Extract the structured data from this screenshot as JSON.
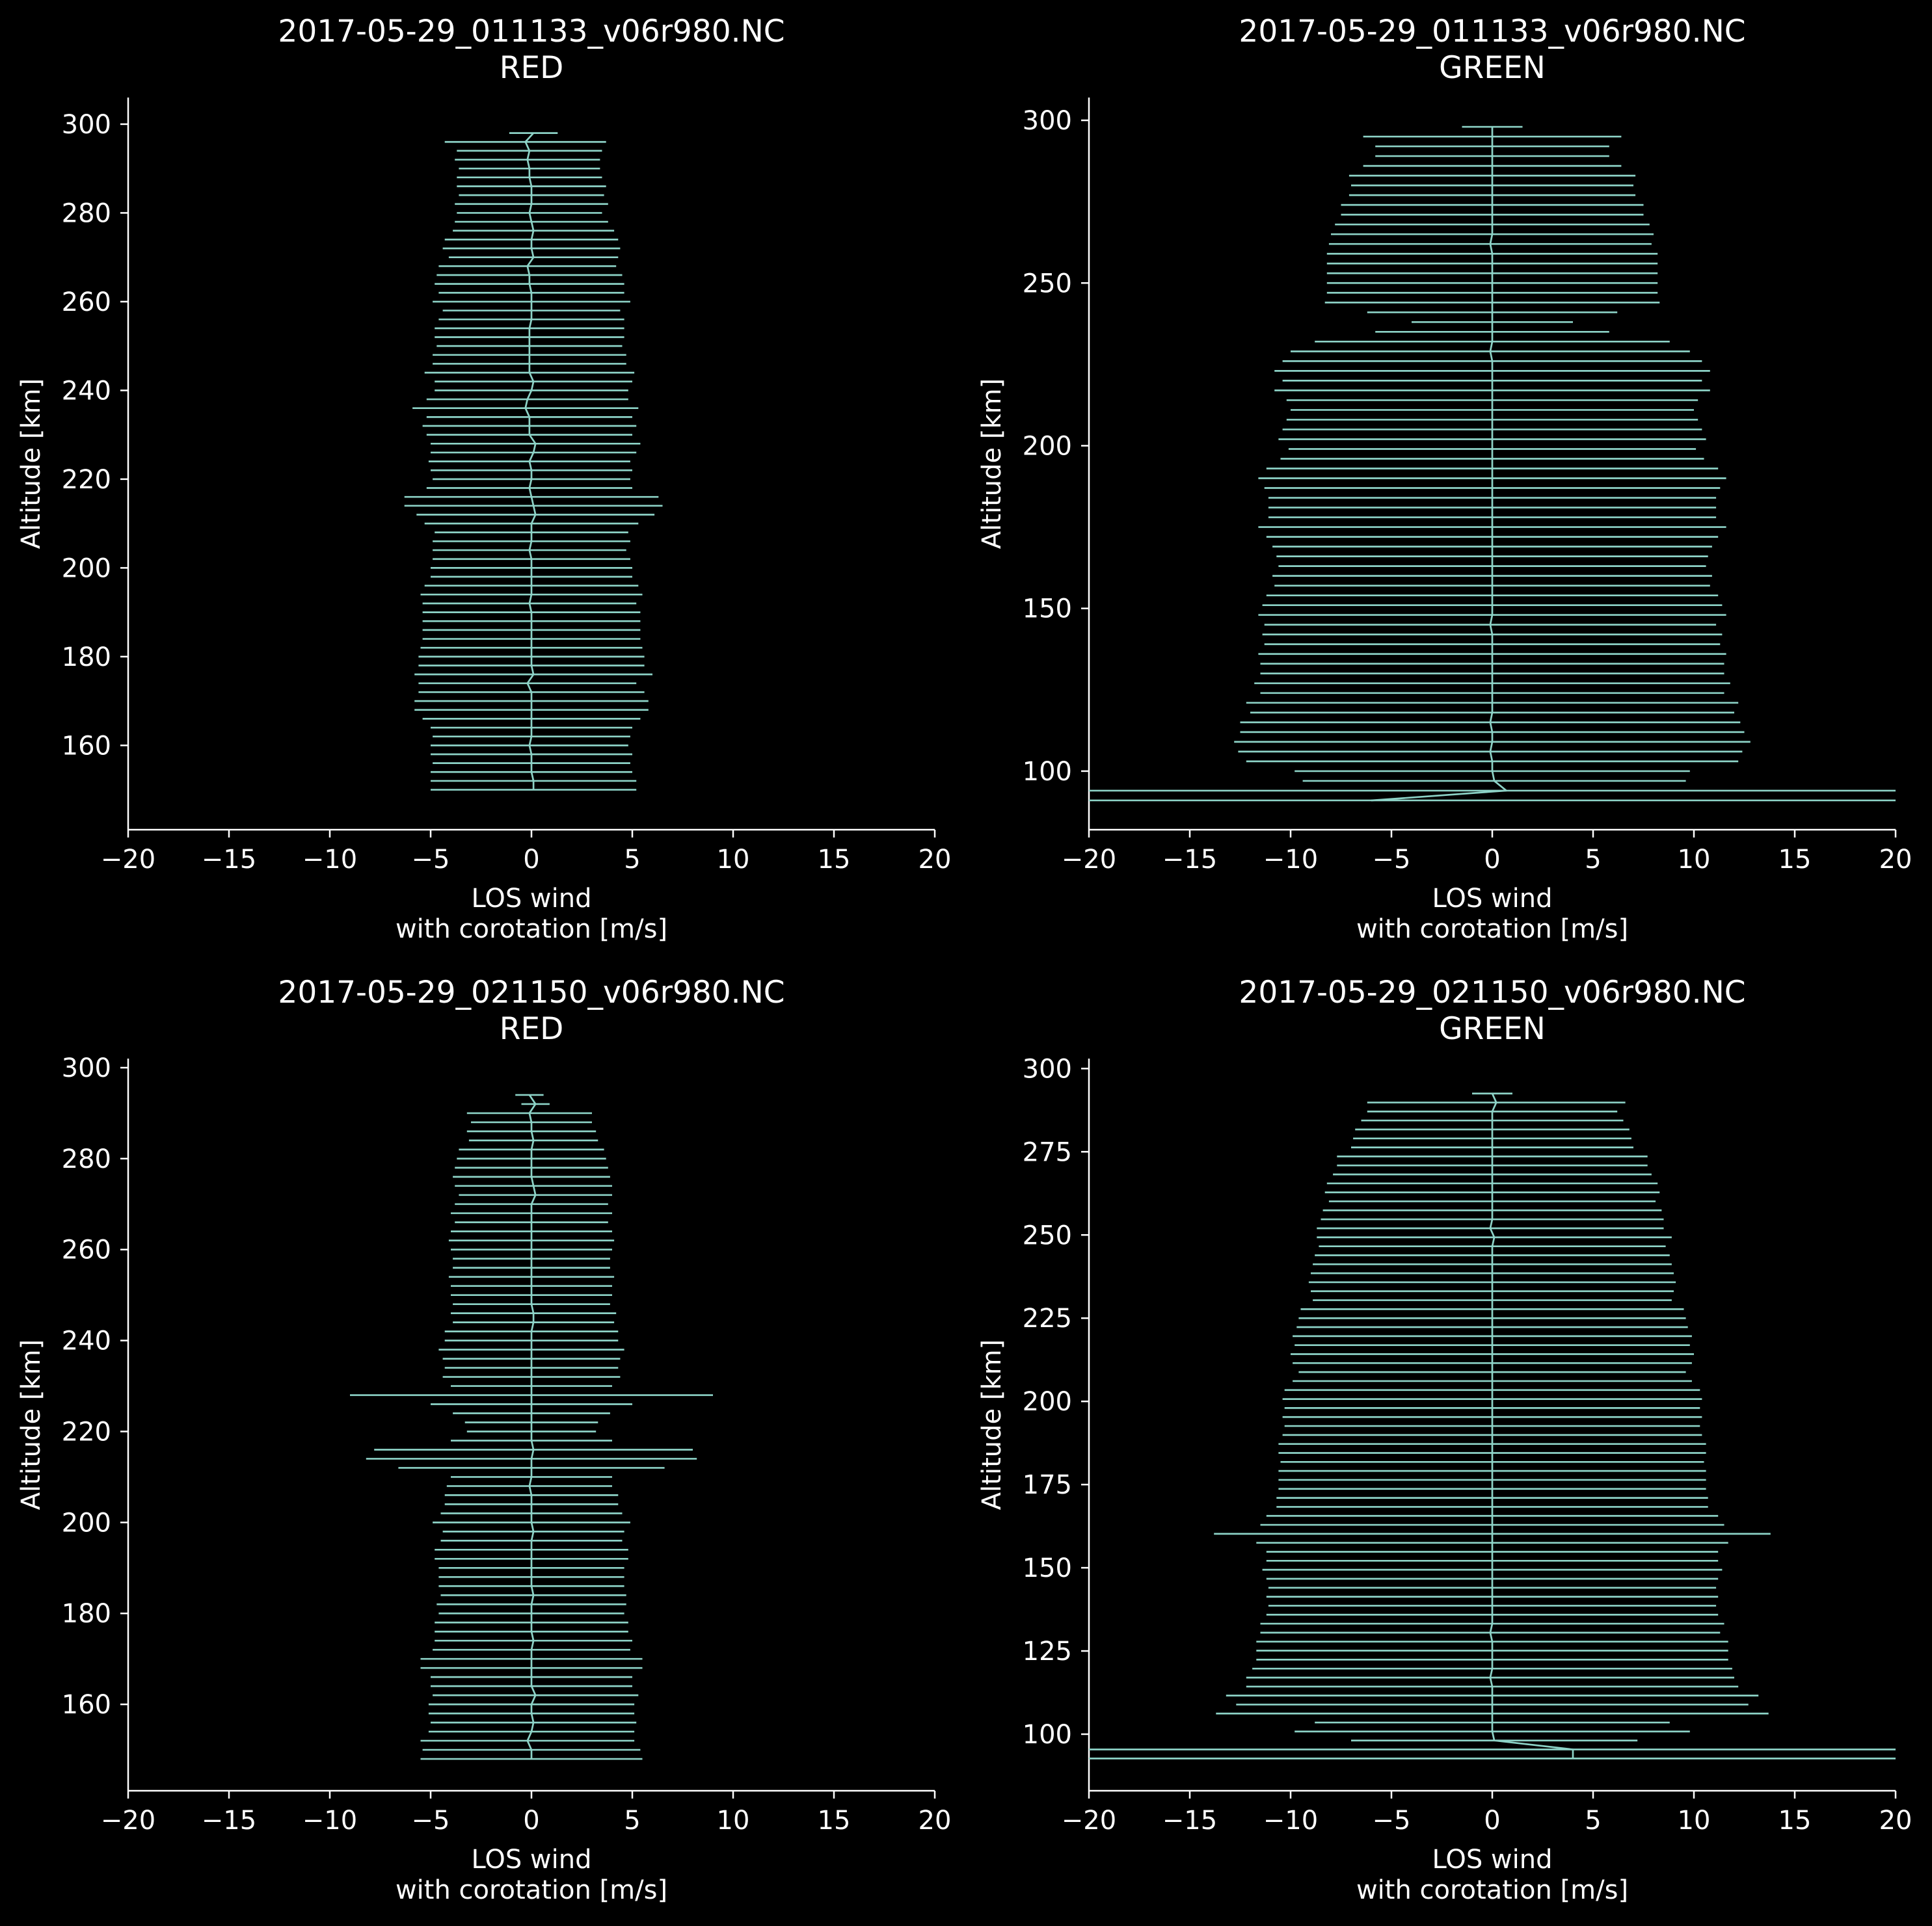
{
  "figure": {
    "background": "#000000",
    "foreground": "#ffffff",
    "series_color": "#8dd3c7"
  },
  "chart_data": [
    {
      "type": "line",
      "title_lines": [
        "2017-05-29_011133_v06r980.NC",
        "RED"
      ],
      "xlabel_lines": [
        "LOS wind",
        "with corotation [m/s]"
      ],
      "ylabel": "Altitude [km]",
      "xlim": [
        -20,
        20
      ],
      "ylim": [
        141,
        306
      ],
      "xticks": [
        -20,
        -15,
        -10,
        -5,
        0,
        5,
        10,
        15,
        20
      ],
      "xtick_labels": [
        "−20",
        "−15",
        "−10",
        "−5",
        "0",
        "5",
        "10",
        "15",
        "20"
      ],
      "yticks": [
        160,
        180,
        200,
        220,
        240,
        260,
        280,
        300
      ],
      "ytick_labels": [
        "160",
        "180",
        "200",
        "220",
        "240",
        "260",
        "280",
        "300"
      ],
      "grid": false,
      "series": [
        {
          "style": "line-with-x-errorbars",
          "alt": [
            150,
            152,
            154,
            156,
            158,
            160,
            162,
            164,
            166,
            168,
            170,
            172,
            174,
            176,
            178,
            180,
            182,
            184,
            186,
            188,
            190,
            192,
            194,
            196,
            198,
            200,
            202,
            204,
            206,
            208,
            210,
            212,
            214,
            216,
            218,
            220,
            222,
            224,
            226,
            228,
            230,
            232,
            234,
            236,
            238,
            240,
            242,
            244,
            246,
            248,
            250,
            252,
            254,
            256,
            258,
            260,
            262,
            264,
            266,
            268,
            270,
            272,
            274,
            276,
            278,
            280,
            282,
            284,
            286,
            288,
            290,
            292,
            294,
            296,
            298
          ],
          "wind": [
            0.1,
            0.1,
            0.0,
            0.0,
            0.0,
            -0.1,
            0.0,
            0.0,
            0.0,
            0.0,
            0.0,
            0.0,
            -0.2,
            0.1,
            0.0,
            0.0,
            0.0,
            0.0,
            0.0,
            0.0,
            0.0,
            -0.1,
            0.0,
            0.0,
            0.0,
            0.0,
            0.0,
            -0.1,
            0.0,
            0.0,
            0.0,
            0.2,
            0.1,
            0.0,
            -0.1,
            0.0,
            0.0,
            -0.1,
            0.1,
            0.2,
            -0.1,
            -0.1,
            -0.1,
            -0.3,
            -0.2,
            0.0,
            0.1,
            -0.1,
            -0.1,
            -0.1,
            -0.1,
            -0.1,
            -0.1,
            0.0,
            0.0,
            0.0,
            0.0,
            -0.1,
            -0.1,
            -0.2,
            0.1,
            0.0,
            0.0,
            0.1,
            0.0,
            -0.1,
            0.0,
            0.0,
            0.0,
            -0.1,
            -0.1,
            -0.2,
            -0.1,
            -0.3,
            0.1
          ],
          "err": [
            5.1,
            5.1,
            5.0,
            4.9,
            5.0,
            4.9,
            4.9,
            5.0,
            5.4,
            5.8,
            5.8,
            5.6,
            5.4,
            5.9,
            5.6,
            5.6,
            5.5,
            5.4,
            5.4,
            5.4,
            5.4,
            5.3,
            5.5,
            5.3,
            5.0,
            5.0,
            4.9,
            4.8,
            4.9,
            4.8,
            5.3,
            5.9,
            6.4,
            6.3,
            5.1,
            4.9,
            5.0,
            5.0,
            5.1,
            5.2,
            5.1,
            5.3,
            5.1,
            5.6,
            5.0,
            4.8,
            4.9,
            5.2,
            4.8,
            4.8,
            4.6,
            4.7,
            4.7,
            4.6,
            4.4,
            4.9,
            4.6,
            4.7,
            4.6,
            4.4,
            4.2,
            4.4,
            4.3,
            4.0,
            3.8,
            3.6,
            3.8,
            3.6,
            3.7,
            3.6,
            3.5,
            3.6,
            3.6,
            4.0,
            1.2
          ]
        }
      ]
    },
    {
      "type": "line",
      "title_lines": [
        "2017-05-29_011133_v06r980.NC",
        "GREEN"
      ],
      "xlabel_lines": [
        "LOS wind",
        "with corotation [m/s]"
      ],
      "ylabel": "Altitude [km]",
      "xlim": [
        -20,
        20
      ],
      "ylim": [
        82,
        307
      ],
      "xticks": [
        -20,
        -15,
        -10,
        -5,
        0,
        5,
        10,
        15,
        20
      ],
      "xtick_labels": [
        "−20",
        "−15",
        "−10",
        "−5",
        "0",
        "5",
        "10",
        "15",
        "20"
      ],
      "yticks": [
        100,
        150,
        200,
        250,
        300
      ],
      "ytick_labels": [
        "100",
        "150",
        "200",
        "250",
        "300"
      ],
      "grid": false,
      "series": [
        {
          "style": "line-with-x-errorbars",
          "alt": [
            91,
            94,
            97,
            100,
            103,
            106,
            109,
            112,
            115,
            118,
            121,
            124,
            127,
            130,
            133,
            136,
            139,
            142,
            145,
            148,
            151,
            154,
            157,
            160,
            163,
            166,
            169,
            172,
            175,
            178,
            181,
            184,
            187,
            190,
            193,
            196,
            199,
            202,
            205,
            208,
            211,
            214,
            217,
            220,
            223,
            226,
            229,
            232,
            235,
            238,
            241,
            244,
            247,
            250,
            253,
            256,
            259,
            262,
            265,
            268,
            271,
            274,
            277,
            280,
            283,
            286,
            289,
            292,
            295,
            298
          ],
          "wind": [
            -6.0,
            0.7,
            0.1,
            0.0,
            0.0,
            -0.1,
            0.0,
            0.0,
            -0.1,
            0.0,
            0.0,
            0.0,
            0.0,
            0.0,
            0.0,
            0.0,
            0.0,
            0.0,
            -0.1,
            0.0,
            0.0,
            0.0,
            0.0,
            0.0,
            0.0,
            0.0,
            0.0,
            0.0,
            0.0,
            0.0,
            0.0,
            0.0,
            0.0,
            0.0,
            0.0,
            0.0,
            0.0,
            0.0,
            0.0,
            0.0,
            0.0,
            0.0,
            0.0,
            0.0,
            0.0,
            0.0,
            -0.1,
            0.0,
            0.0,
            0.0,
            0.0,
            0.0,
            0.0,
            0.0,
            0.0,
            0.0,
            0.0,
            -0.1,
            0.0,
            0.0,
            0.0,
            0.0,
            0.0,
            0.0,
            0.0,
            0.0,
            0.0,
            0.0,
            0.0,
            0.0
          ],
          "err": [
            26.0,
            26.0,
            9.5,
            9.8,
            12.2,
            12.5,
            12.8,
            12.5,
            12.4,
            12.0,
            12.2,
            11.5,
            11.8,
            11.5,
            11.5,
            11.6,
            11.3,
            11.4,
            11.2,
            11.6,
            11.4,
            11.2,
            10.8,
            10.9,
            10.6,
            10.7,
            10.9,
            11.2,
            11.6,
            11.1,
            11.1,
            11.1,
            11.3,
            11.6,
            11.2,
            10.5,
            10.1,
            10.6,
            10.4,
            10.2,
            10.0,
            10.2,
            10.8,
            10.4,
            10.8,
            10.4,
            9.9,
            8.8,
            5.8,
            4.0,
            6.2,
            8.3,
            8.2,
            8.2,
            8.2,
            8.2,
            8.2,
            8.0,
            8.0,
            7.8,
            7.5,
            7.5,
            7.1,
            7.0,
            7.1,
            6.4,
            5.8,
            5.8,
            6.4,
            1.5
          ]
        }
      ]
    },
    {
      "type": "line",
      "title_lines": [
        "2017-05-29_021150_v06r980.NC",
        "RED"
      ],
      "xlabel_lines": [
        "LOS wind",
        "with corotation [m/s]"
      ],
      "ylabel": "Altitude [km]",
      "xlim": [
        -20,
        20
      ],
      "ylim": [
        141,
        302
      ],
      "xticks": [
        -20,
        -15,
        -10,
        -5,
        0,
        5,
        10,
        15,
        20
      ],
      "xtick_labels": [
        "−20",
        "−15",
        "−10",
        "−5",
        "0",
        "5",
        "10",
        "15",
        "20"
      ],
      "yticks": [
        160,
        180,
        200,
        220,
        240,
        260,
        280,
        300
      ],
      "ytick_labels": [
        "160",
        "180",
        "200",
        "220",
        "240",
        "260",
        "280",
        "300"
      ],
      "grid": false,
      "series": [
        {
          "style": "line-with-x-errorbars",
          "alt": [
            148,
            150,
            152,
            154,
            156,
            158,
            160,
            162,
            164,
            166,
            168,
            170,
            172,
            174,
            176,
            178,
            180,
            182,
            184,
            186,
            188,
            190,
            192,
            194,
            196,
            198,
            200,
            202,
            204,
            206,
            208,
            210,
            212,
            214,
            216,
            218,
            220,
            222,
            224,
            226,
            228,
            230,
            232,
            234,
            236,
            238,
            240,
            242,
            244,
            246,
            248,
            250,
            252,
            254,
            256,
            258,
            260,
            262,
            264,
            266,
            268,
            270,
            272,
            274,
            276,
            278,
            280,
            282,
            284,
            286,
            288,
            290,
            292,
            294
          ],
          "wind": [
            0.0,
            0.0,
            -0.2,
            0.0,
            0.1,
            0.0,
            0.0,
            0.2,
            0.0,
            0.0,
            0.0,
            0.0,
            0.0,
            0.1,
            0.0,
            0.0,
            0.0,
            0.0,
            0.1,
            0.0,
            0.0,
            0.0,
            0.0,
            0.0,
            0.0,
            0.1,
            0.0,
            0.0,
            0.0,
            0.0,
            -0.1,
            0.0,
            0.0,
            0.0,
            0.1,
            0.0,
            0.0,
            0.0,
            0.0,
            0.0,
            0.0,
            0.0,
            0.0,
            0.0,
            0.0,
            0.0,
            0.0,
            0.0,
            0.1,
            0.1,
            0.0,
            0.0,
            0.0,
            0.0,
            0.0,
            0.0,
            0.0,
            0.0,
            0.0,
            0.0,
            0.0,
            0.0,
            0.2,
            0.1,
            0.0,
            0.0,
            0.0,
            0.0,
            0.1,
            0.0,
            0.0,
            -0.1,
            0.2,
            -0.1
          ],
          "err": [
            5.5,
            5.4,
            5.3,
            5.1,
            5.1,
            5.1,
            5.1,
            5.1,
            5.0,
            5.0,
            5.5,
            5.5,
            4.9,
            4.9,
            4.8,
            4.8,
            4.6,
            4.7,
            4.6,
            4.6,
            4.6,
            4.6,
            4.8,
            4.8,
            4.5,
            4.5,
            4.9,
            4.5,
            4.3,
            4.3,
            4.1,
            4.0,
            6.6,
            8.2,
            7.9,
            4.0,
            3.2,
            3.3,
            3.9,
            5.0,
            9.0,
            4.0,
            4.4,
            4.3,
            4.4,
            4.6,
            4.3,
            4.3,
            4.0,
            4.1,
            3.9,
            4.0,
            4.0,
            4.1,
            3.9,
            3.9,
            4.0,
            4.1,
            4.0,
            3.8,
            4.0,
            3.8,
            3.8,
            3.9,
            3.9,
            3.8,
            3.7,
            3.6,
            3.2,
            3.2,
            3.0,
            3.1,
            0.7,
            0.7
          ]
        }
      ]
    },
    {
      "type": "line",
      "title_lines": [
        "2017-05-29_021150_v06r980.NC",
        "GREEN"
      ],
      "xlabel_lines": [
        "LOS wind",
        "with corotation [m/s]"
      ],
      "ylabel": "Altitude [km]",
      "xlim": [
        -20,
        20
      ],
      "ylim": [
        83,
        303
      ],
      "xticks": [
        -20,
        -15,
        -10,
        -5,
        0,
        5,
        10,
        15,
        20
      ],
      "xtick_labels": [
        "−20",
        "−15",
        "−10",
        "−5",
        "0",
        "5",
        "10",
        "15",
        "20"
      ],
      "yticks": [
        100,
        125,
        150,
        175,
        200,
        225,
        250,
        275,
        300
      ],
      "ytick_labels": [
        "100",
        "125",
        "150",
        "175",
        "200",
        "225",
        "250",
        "275",
        "300"
      ],
      "grid": false,
      "series": [
        {
          "style": "line-with-x-errorbars",
          "alt": [
            92.7,
            95.4,
            98.1,
            100.8,
            103.5,
            106.2,
            108.9,
            111.6,
            114.3,
            117.0,
            119.7,
            122.4,
            125.1,
            127.8,
            130.5,
            133.2,
            135.9,
            138.6,
            141.3,
            144.0,
            146.7,
            149.4,
            152.1,
            154.8,
            157.5,
            160.2,
            162.9,
            165.6,
            168.3,
            171.0,
            173.7,
            176.4,
            179.1,
            181.8,
            184.5,
            187.2,
            189.9,
            192.6,
            195.3,
            198.0,
            200.7,
            203.4,
            206.1,
            208.8,
            211.5,
            214.2,
            216.9,
            219.6,
            222.3,
            225.0,
            227.7,
            230.4,
            233.1,
            235.8,
            238.5,
            241.2,
            243.9,
            246.6,
            249.3,
            252.0,
            254.7,
            257.4,
            260.1,
            262.8,
            265.5,
            268.2,
            270.9,
            273.6,
            276.3,
            279.0,
            281.7,
            284.4,
            287.1,
            289.8,
            292.5
          ],
          "wind": [
            4.0,
            4.0,
            0.1,
            0.0,
            0.0,
            0.0,
            0.0,
            0.0,
            0.0,
            -0.1,
            0.0,
            0.0,
            0.0,
            0.0,
            -0.1,
            0.0,
            0.0,
            0.0,
            0.0,
            0.0,
            0.0,
            0.0,
            0.0,
            0.0,
            0.0,
            0.0,
            0.0,
            0.0,
            0.0,
            0.0,
            0.0,
            0.0,
            0.0,
            0.0,
            0.0,
            0.0,
            0.0,
            0.0,
            0.0,
            0.0,
            0.0,
            0.0,
            0.0,
            0.0,
            0.0,
            0.0,
            0.0,
            0.0,
            0.0,
            0.0,
            0.0,
            0.0,
            0.0,
            0.0,
            0.0,
            0.0,
            0.0,
            0.0,
            0.1,
            -0.1,
            0.0,
            0.0,
            0.0,
            0.0,
            0.0,
            0.0,
            0.0,
            0.0,
            0.0,
            0.0,
            0.0,
            0.0,
            0.0,
            0.2,
            0.0
          ],
          "err": [
            24.0,
            24.0,
            7.1,
            9.8,
            8.8,
            13.7,
            12.7,
            13.2,
            12.2,
            12.1,
            11.9,
            11.7,
            11.7,
            11.7,
            11.4,
            11.5,
            11.2,
            11.1,
            11.2,
            11.1,
            11.2,
            11.4,
            11.2,
            11.2,
            11.7,
            13.8,
            11.5,
            11.2,
            10.7,
            10.7,
            10.6,
            10.6,
            10.6,
            10.5,
            10.6,
            10.6,
            10.4,
            10.3,
            10.4,
            10.3,
            10.4,
            10.3,
            9.9,
            9.6,
            9.9,
            10.0,
            9.8,
            9.9,
            9.7,
            9.6,
            9.5,
            8.9,
            9.0,
            9.1,
            9.0,
            8.9,
            8.8,
            8.6,
            8.8,
            8.6,
            8.5,
            8.4,
            8.1,
            8.3,
            8.2,
            7.9,
            7.7,
            7.7,
            7.0,
            6.9,
            6.8,
            6.5,
            6.2,
            6.4,
            1.0
          ]
        }
      ]
    }
  ]
}
